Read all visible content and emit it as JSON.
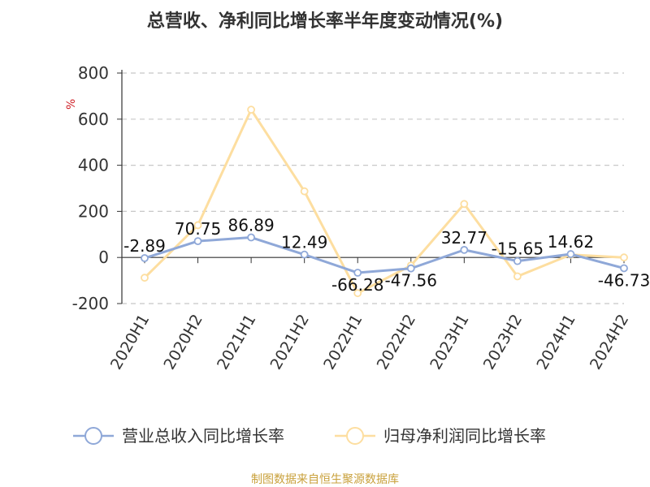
{
  "colors": {
    "revenue": "#8fa8d8",
    "profit": "#fddea0",
    "grid": "#c8c8c8",
    "axis": "#333333",
    "unit": "#d0242b",
    "source": "#c9a13c"
  },
  "chart_data": {
    "type": "line",
    "title": "总营收、净利同比增长率半年度变动情况(%)",
    "unit_label": "%",
    "categories": [
      "2020H1",
      "2020H2",
      "2021H1",
      "2021H2",
      "2022H1",
      "2022H2",
      "2023H1",
      "2023H2",
      "2024H1",
      "2024H2"
    ],
    "ylim": [
      -200,
      800
    ],
    "yticks": [
      800,
      600,
      400,
      200,
      0,
      -200
    ],
    "grid": true,
    "legend_position": "bottom",
    "series": [
      {
        "name": "营业总收入同比增长率",
        "values": [
          -2.89,
          70.75,
          86.89,
          12.49,
          -66.28,
          -47.56,
          32.77,
          -15.65,
          14.62,
          -46.73
        ],
        "data_labels": [
          "-2.89",
          "70.75",
          "86.89",
          "12.49",
          "-66.28",
          "-47.56",
          "32.77",
          "-15.65",
          "14.62",
          "-46.73"
        ]
      },
      {
        "name": "归母净利润同比增长率",
        "values": [
          -88,
          140,
          641,
          287,
          -155,
          -35,
          232,
          -82,
          12,
          0
        ]
      }
    ]
  },
  "source": "制图数据来自恒生聚源数据库"
}
